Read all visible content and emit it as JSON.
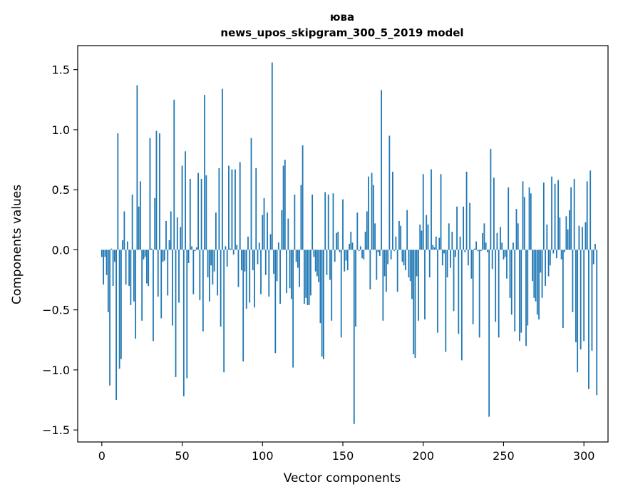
{
  "chart_data": {
    "type": "bar",
    "title_line1": "юва",
    "title_line2": "news_upos_skipgram_300_5_2019 model",
    "xlabel": "Vector components",
    "ylabel": "Components values",
    "xlim": [
      -15,
      315
    ],
    "ylim": [
      -1.6,
      1.7
    ],
    "xticks": [
      0,
      50,
      100,
      150,
      200,
      250,
      300
    ],
    "xtick_labels": [
      "0",
      "50",
      "100",
      "150",
      "200",
      "250",
      "300"
    ],
    "yticks": [
      -1.5,
      -1.0,
      -0.5,
      0.0,
      0.5,
      1.0,
      1.5
    ],
    "ytick_labels": [
      "−1.5",
      "−1.0",
      "−0.5",
      "0.0",
      "0.5",
      "1.0",
      "1.5"
    ],
    "bar_color": "#1f77b4",
    "bar_width": 0.8,
    "values": [
      -0.06,
      -0.29,
      -0.06,
      -0.21,
      -0.52,
      -1.13,
      0.01,
      -0.3,
      -0.1,
      -1.25,
      0.97,
      -0.99,
      -0.91,
      0.08,
      0.32,
      -0.29,
      0.07,
      -0.3,
      -0.46,
      0.46,
      -0.43,
      -0.74,
      1.37,
      0.36,
      0.57,
      -0.59,
      -0.08,
      -0.06,
      -0.28,
      -0.3,
      0.93,
      0.01,
      -0.76,
      0.43,
      0.99,
      -0.39,
      0.97,
      -0.57,
      -0.1,
      -0.09,
      0.24,
      -0.38,
      0.08,
      0.32,
      -0.63,
      1.25,
      -1.06,
      0.27,
      -0.44,
      0.19,
      0.7,
      -1.22,
      0.82,
      -1.07,
      -0.11,
      0.59,
      0.03,
      -0.37,
      -0.01,
      0.02,
      0.64,
      -0.42,
      0.59,
      -0.68,
      1.29,
      0.62,
      -0.23,
      -0.43,
      -0.13,
      -0.29,
      -0.18,
      0.31,
      -0.38,
      0.68,
      -0.64,
      1.34,
      -1.02,
      0.03,
      -0.14,
      0.7,
      0.01,
      0.67,
      -0.04,
      0.67,
      0.04,
      -0.31,
      0.73,
      -0.17,
      -0.93,
      -0.18,
      -0.49,
      0.11,
      -0.44,
      0.93,
      -0.17,
      -0.48,
      0.68,
      -0.12,
      0.06,
      -0.37,
      0.29,
      0.43,
      -0.21,
      0.31,
      -0.39,
      0.13,
      1.56,
      -0.2,
      -0.86,
      -0.26,
      0.06,
      -0.45,
      0.33,
      0.7,
      0.75,
      -0.36,
      0.26,
      -0.32,
      -0.41,
      -0.98,
      0.46,
      -0.1,
      -0.15,
      -0.31,
      0.54,
      0.87,
      -0.45,
      -0.4,
      -0.46,
      -0.46,
      -0.38,
      0.46,
      -0.06,
      -0.18,
      -0.22,
      -0.27,
      -0.61,
      -0.89,
      -0.91,
      0.48,
      -0.21,
      0.46,
      -0.25,
      -0.59,
      0.47,
      -0.1,
      0.14,
      0.15,
      -0.02,
      -0.73,
      0.42,
      -0.18,
      -0.09,
      -0.17,
      0.05,
      0.15,
      0.06,
      -1.45,
      -0.64,
      0.31,
      -0.01,
      0.03,
      -0.07,
      -0.08,
      0.15,
      0.32,
      0.61,
      -0.33,
      0.64,
      0.54,
      0.22,
      -0.25,
      -0.02,
      -0.05,
      1.33,
      -0.59,
      -0.22,
      -0.35,
      -0.12,
      0.95,
      -0.08,
      0.65,
      -0.01,
      0.11,
      -0.35,
      0.24,
      0.2,
      -0.1,
      -0.13,
      -0.17,
      0.33,
      -0.23,
      -0.26,
      -0.41,
      -0.87,
      -0.9,
      -0.22,
      -0.59,
      0.21,
      0.16,
      0.63,
      -0.58,
      0.29,
      0.21,
      -0.23,
      0.67,
      0.04,
      0.02,
      0.11,
      -0.69,
      0.1,
      0.63,
      -0.13,
      -0.03,
      -0.85,
      -0.23,
      0.22,
      -0.15,
      0.15,
      -0.51,
      -0.06,
      0.36,
      -0.7,
      0.11,
      -0.92,
      0.36,
      -0.02,
      0.65,
      -0.13,
      0.39,
      -0.24,
      -0.62,
      0.01,
      0.07,
      -0.01,
      -0.73,
      -0.01,
      0.14,
      0.22,
      0.06,
      -0.02,
      -1.39,
      0.84,
      -0.16,
      0.6,
      -0.6,
      0.14,
      -0.73,
      0.19,
      0.06,
      -0.08,
      -0.06,
      -0.24,
      0.52,
      -0.4,
      -0.54,
      0.06,
      -0.68,
      0.34,
      0.22,
      -0.76,
      -0.69,
      0.57,
      0.44,
      -0.8,
      -0.63,
      0.52,
      0.47,
      -0.26,
      -0.4,
      -0.43,
      -0.54,
      -0.58,
      -0.19,
      -0.4,
      0.56,
      -0.3,
      0.21,
      -0.22,
      -0.13,
      0.61,
      -0.03,
      0.55,
      -0.07,
      0.58,
      0.27,
      -0.08,
      -0.65,
      -0.02,
      0.28,
      0.17,
      0.33,
      0.52,
      -0.52,
      0.59,
      -0.77,
      -1.02,
      0.2,
      -0.83,
      0.19,
      -0.76,
      0.23,
      0.57,
      -1.16,
      0.66,
      -0.84,
      -0.12,
      0.05,
      -1.21
    ]
  }
}
